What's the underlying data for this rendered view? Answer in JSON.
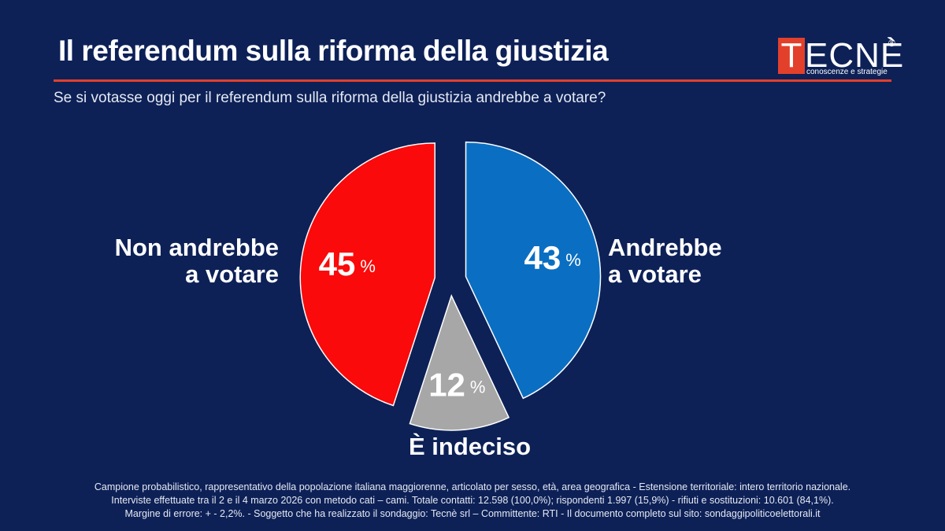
{
  "header": {
    "title": "Il referendum sulla riforma della giustizia",
    "subtitle": "Se si votasse oggi per il referendum sulla riforma della giustizia andrebbe a votare?"
  },
  "logo": {
    "first_letter": "T",
    "rest": "ECNÈ",
    "registered": "®",
    "tagline": "conoscenze e strategie"
  },
  "colors": {
    "background": "#0d2157",
    "accent": "#e2402b",
    "non_andrebbe": "#fa0a0a",
    "andrebbe": "#0a6fc2",
    "indeciso": "#a7a7a7"
  },
  "chart_data": {
    "type": "pie",
    "title": "Se si votasse oggi per il referendum sulla riforma della giustizia andrebbe a votare?",
    "unit": "%",
    "slices": [
      {
        "label": "Andrebbe a votare",
        "label_lines": [
          "Andrebbe",
          "a votare"
        ],
        "value": 43,
        "color": "#0a6fc2"
      },
      {
        "label": "È indeciso",
        "label_lines": [
          "È indeciso"
        ],
        "value": 12,
        "color": "#a7a7a7"
      },
      {
        "label": "Non andrebbe a votare",
        "label_lines": [
          "Non andrebbe",
          "a  votare"
        ],
        "value": 45,
        "color": "#fa0a0a"
      }
    ]
  },
  "footer": {
    "line1": "Campione probabilistico, rappresentativo della popolazione italiana maggiorenne, articolato per sesso, età, area geografica - Estensione territoriale: intero territorio nazionale.",
    "line2": "Interviste effettuate tra il 2 e il 4 marzo 2026 con metodo cati – cami. Totale contatti: 12.598 (100,0%); rispondenti 1.997 (15,9%) - rifiuti e sostituzioni: 10.601 (84,1%).",
    "line3": "Margine di errore: + - 2,2%.  - Soggetto che ha realizzato il sondaggio: Tecnè srl – Committente: RTI - Il documento completo sul sito: sondaggipoliticoelettorali.it"
  }
}
